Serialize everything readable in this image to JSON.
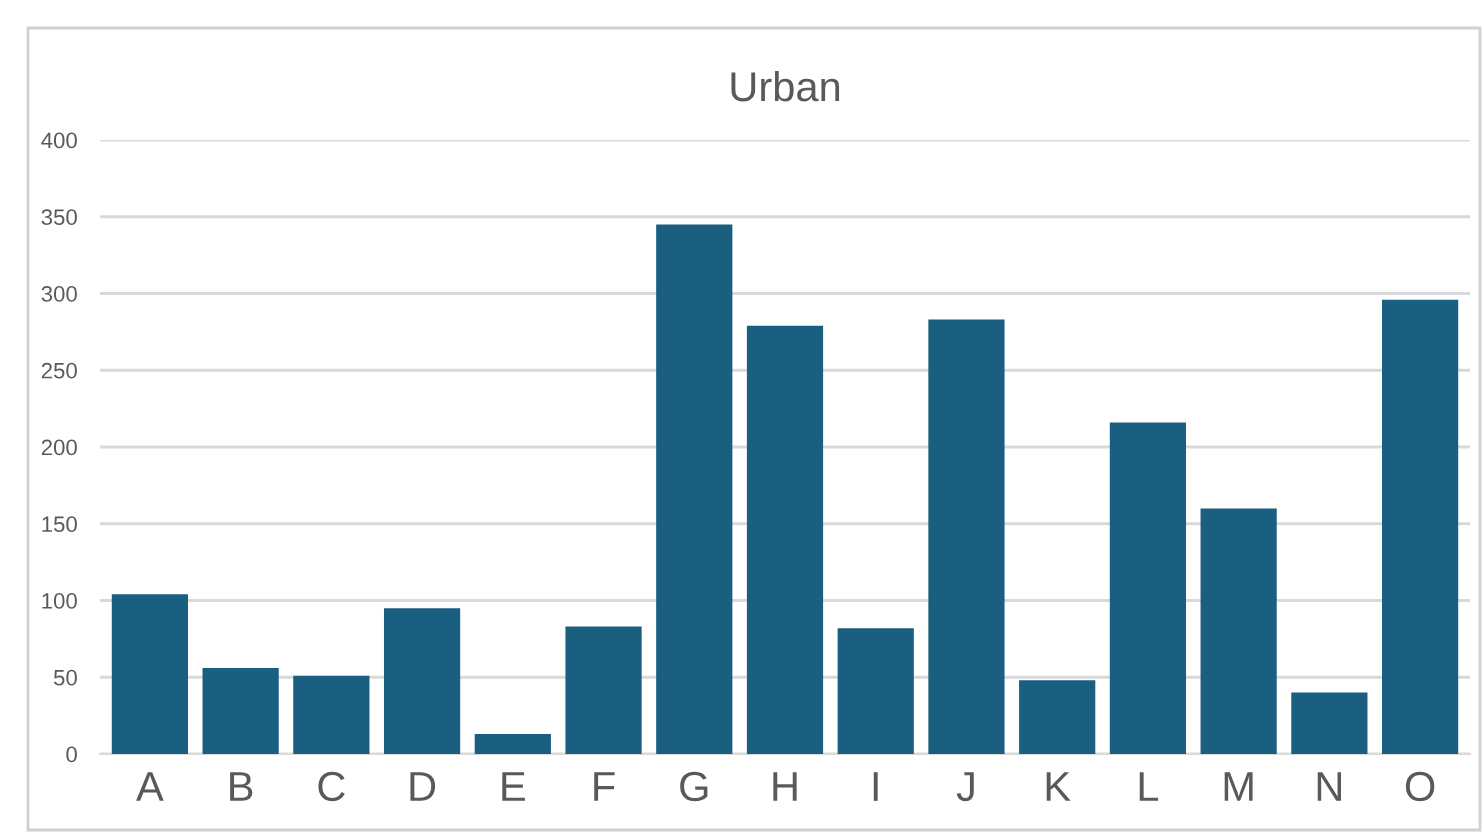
{
  "chart_data": {
    "type": "bar",
    "title": "Urban",
    "categories": [
      "A",
      "B",
      "C",
      "D",
      "E",
      "F",
      "G",
      "H",
      "I",
      "J",
      "K",
      "L",
      "M",
      "N",
      "O"
    ],
    "values": [
      104,
      56,
      51,
      95,
      13,
      83,
      345,
      279,
      82,
      283,
      48,
      216,
      160,
      40,
      296
    ],
    "color": "#1a5f80",
    "ylim": [
      0,
      400
    ],
    "yticks": [
      0,
      50,
      100,
      150,
      200,
      250,
      300,
      350,
      400
    ],
    "grid": "y"
  }
}
